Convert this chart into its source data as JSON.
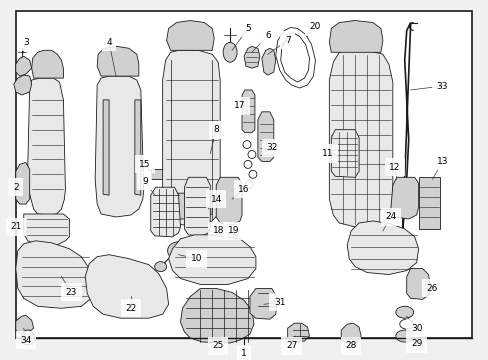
{
  "fig_width": 4.89,
  "fig_height": 3.6,
  "dpi": 100,
  "background_color": "#f0f0f0",
  "border_color": "#000000",
  "diagram_bg": "#ffffff",
  "label_fontsize": 6.5,
  "line_color": "#1a1a1a",
  "line_width": 0.6,
  "gray_light": "#e8e8e8",
  "gray_mid": "#d0d0d0",
  "gray_dark": "#b0b0b0"
}
